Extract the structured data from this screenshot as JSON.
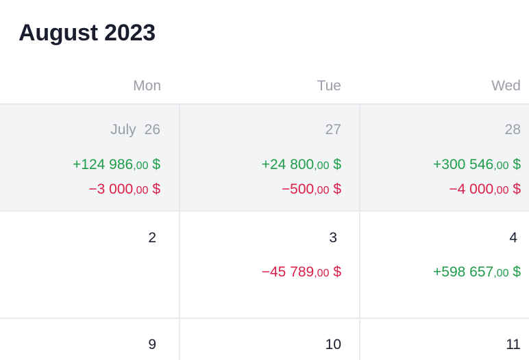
{
  "title": "August 2023",
  "weekdays": [
    "Mon",
    "Tue",
    "Wed"
  ],
  "rows": [
    {
      "cells": [
        {
          "month": "July",
          "day": "26",
          "income": {
            "main": "+124 986",
            "cents": ",00",
            "unit": " $"
          },
          "expense": {
            "main": "−3 000",
            "cents": ",00",
            "unit": " $"
          }
        },
        {
          "day": "27",
          "income": {
            "main": "+24 800",
            "cents": ",00",
            "unit": " $"
          },
          "expense": {
            "main": "−500",
            "cents": ",00",
            "unit": " $"
          }
        },
        {
          "day": "28",
          "income": {
            "main": "+300 546",
            "cents": ",00",
            "unit": " $"
          },
          "expense": {
            "main": "−4 000",
            "cents": ",00",
            "unit": " $"
          }
        }
      ]
    },
    {
      "cells": [
        {
          "day": "2"
        },
        {
          "day": "3",
          "expense": {
            "main": "−45 789",
            "cents": ",00",
            "unit": " $"
          }
        },
        {
          "day": "4",
          "income": {
            "main": "+598 657",
            "cents": ",00",
            "unit": " $"
          }
        }
      ]
    },
    {
      "cells": [
        {
          "day": "9"
        },
        {
          "day": "10"
        },
        {
          "day": "11"
        }
      ]
    }
  ],
  "colors": {
    "income": "#1f9d4a",
    "expense": "#dc1f4a",
    "muted": "#9a9ea8",
    "text": "#1a1d2e",
    "shade": "#f3f4f6"
  }
}
